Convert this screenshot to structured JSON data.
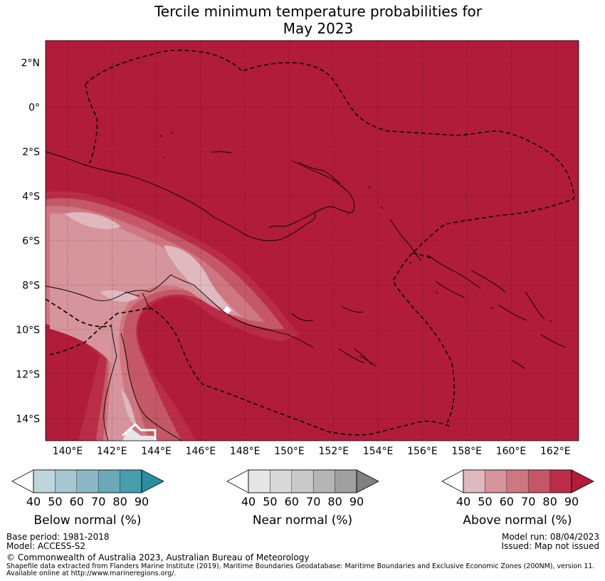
{
  "title": {
    "line1": "Tercile minimum temperature probabilities for",
    "line2": "May 2023"
  },
  "map": {
    "lat_labels": [
      "2°N",
      "0°",
      "2°S",
      "4°S",
      "6°S",
      "8°S",
      "10°S",
      "12°S",
      "14°S"
    ],
    "lon_labels": [
      "140°E",
      "142°E",
      "144°E",
      "146°E",
      "148°E",
      "150°E",
      "152°E",
      "154°E",
      "156°E",
      "158°E",
      "160°E",
      "162°E"
    ],
    "background_color": "#b11c3a"
  },
  "colorbars": [
    {
      "title": "Below normal (%)",
      "ticks": [
        "40",
        "50",
        "60",
        "70",
        "80",
        "90"
      ],
      "colors": [
        "#ffffff",
        "#bcd6dc",
        "#a6c7cf",
        "#8bb8c4",
        "#6aa9b7",
        "#479ead",
        "#2a8fa3"
      ]
    },
    {
      "title": "Near normal (%)",
      "ticks": [
        "40",
        "50",
        "60",
        "70",
        "80",
        "90"
      ],
      "colors": [
        "#ffffff",
        "#e6e6e6",
        "#d9d9d9",
        "#c9c9c9",
        "#b5b5b5",
        "#a0a0a0",
        "#808080"
      ]
    },
    {
      "title": "Above normal (%)",
      "ticks": [
        "40",
        "50",
        "60",
        "70",
        "80",
        "90"
      ],
      "colors": [
        "#ffffff",
        "#e0b8bf",
        "#d6949c",
        "#cf7780",
        "#c45866",
        "#b92d46",
        "#b11c3a"
      ]
    }
  ],
  "footer": {
    "base_period": "Base period: 1981-2018",
    "model": "Model: ACCESS-S2",
    "model_run": "Model run: 08/04/2023",
    "issued": "Issued: Map not issued",
    "copyright": "© Commonwealth of Australia 2023, Australian Bureau of Meteorology",
    "shapefile_line1": "Shapefile data extracted from Flanders Marine Institute (2019), Maritime Boundaries Geodatabase: Maritime Boundaries and Exclusive Economic Zones (200NM), version 11.",
    "shapefile_line2": "Available online at http://www.marineregions.org/."
  }
}
